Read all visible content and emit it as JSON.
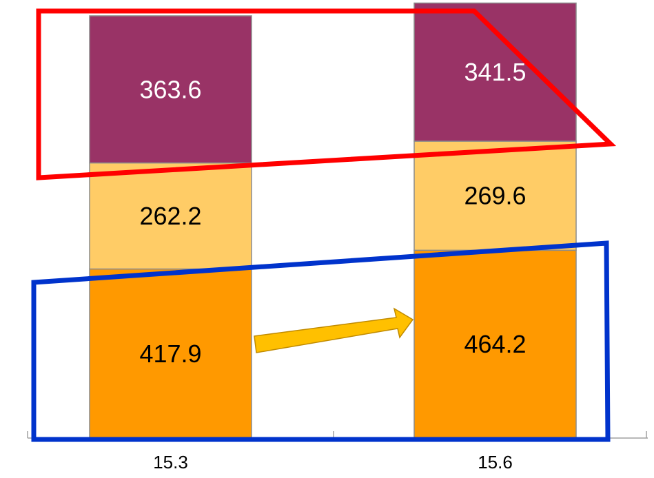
{
  "chart_data": {
    "type": "bar",
    "stacked": true,
    "categories": [
      "15.3",
      "15.6"
    ],
    "series": [
      {
        "values": [
          417.9,
          464.2
        ],
        "labels": [
          "417.9",
          "464.2"
        ],
        "color": "#FF9900",
        "label_color": "#000000"
      },
      {
        "values": [
          262.2,
          269.6
        ],
        "labels": [
          "262.2",
          "269.6"
        ],
        "color": "#FFCC66",
        "label_color": "#000000"
      },
      {
        "values": [
          363.6,
          341.5
        ],
        "labels": [
          "363.6",
          "341.5"
        ],
        "color": "#993366",
        "label_color": "#FFFFFF"
      }
    ],
    "ylim": [
      0,
      1076
    ],
    "grid": false,
    "annotations": [
      {
        "kind": "highlight-box",
        "target": "top segments",
        "color": "#FF0000"
      },
      {
        "kind": "highlight-box",
        "target": "bottom segments",
        "color": "#0033CC"
      },
      {
        "kind": "arrow",
        "from_category": "15.3",
        "to_category": "15.6",
        "color": "#FFC000"
      }
    ]
  }
}
